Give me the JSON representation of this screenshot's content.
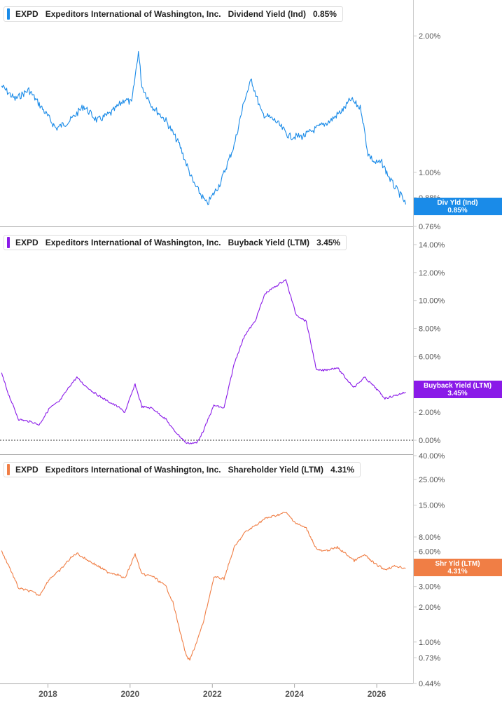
{
  "chart_data": [
    {
      "type": "line",
      "ticker": "EXPD",
      "company": "Expeditors International of Washington, Inc.",
      "metric": "Dividend Yield (Ind)",
      "current_value": "0.85%",
      "tag_label": "Div Yld (Ind)",
      "tag_value": "0.85%",
      "color": "#1a8be8",
      "y_scale": "log",
      "ylim": [
        0.76,
        2.4
      ],
      "y_ticks": [
        {
          "v": 2.0,
          "label": "2.00%"
        },
        {
          "v": 1.0,
          "label": "1.00%"
        },
        {
          "v": 0.88,
          "label": "0.88%"
        },
        {
          "v": 0.76,
          "label": "0.76%"
        }
      ],
      "x": [
        "2016-11",
        "2017-03",
        "2017-07",
        "2017-11",
        "2018-03",
        "2018-07",
        "2018-11",
        "2019-03",
        "2019-07",
        "2019-11",
        "2020-01",
        "2020-03",
        "2020-04",
        "2020-07",
        "2020-11",
        "2021-03",
        "2021-07",
        "2021-11",
        "2022-03",
        "2022-07",
        "2022-10",
        "2022-12",
        "2023-03",
        "2023-07",
        "2023-11",
        "2024-03",
        "2024-07",
        "2024-11",
        "2025-03",
        "2025-05",
        "2025-08",
        "2025-10",
        "2025-12",
        "2026-02",
        "2026-05",
        "2026-08",
        "2026-09"
      ],
      "values": [
        1.55,
        1.45,
        1.52,
        1.38,
        1.25,
        1.3,
        1.4,
        1.3,
        1.35,
        1.45,
        1.42,
        1.85,
        1.55,
        1.4,
        1.3,
        1.15,
        0.95,
        0.85,
        0.95,
        1.15,
        1.45,
        1.6,
        1.35,
        1.3,
        1.2,
        1.2,
        1.25,
        1.3,
        1.38,
        1.45,
        1.38,
        1.1,
        1.05,
        1.05,
        0.95,
        0.88,
        0.85
      ]
    },
    {
      "type": "line",
      "ticker": "EXPD",
      "company": "Expeditors International of Washington, Inc.",
      "metric": "Buyback Yield (LTM)",
      "current_value": "3.45%",
      "tag_label": "Buyback Yield (LTM)",
      "tag_value": "3.45%",
      "color": "#8a1ae8",
      "y_scale": "linear",
      "ylim": [
        -1.0,
        15.2
      ],
      "zero_line": true,
      "y_ticks": [
        {
          "v": 14,
          "label": "14.00%"
        },
        {
          "v": 12,
          "label": "12.00%"
        },
        {
          "v": 10,
          "label": "10.00%"
        },
        {
          "v": 8,
          "label": "8.00%"
        },
        {
          "v": 6,
          "label": "6.00%"
        },
        {
          "v": 4,
          "label": "4.00%"
        },
        {
          "v": 2,
          "label": "2.00%"
        },
        {
          "v": 0,
          "label": "0.00%"
        }
      ],
      "x": [
        "2016-11",
        "2017-01",
        "2017-04",
        "2017-08",
        "2017-10",
        "2018-01",
        "2018-04",
        "2018-07",
        "2018-09",
        "2018-11",
        "2019-02",
        "2019-06",
        "2019-09",
        "2019-11",
        "2020-02",
        "2020-04",
        "2020-07",
        "2020-11",
        "2021-01",
        "2021-05",
        "2021-06",
        "2021-08",
        "2021-10",
        "2022-01",
        "2022-04",
        "2022-07",
        "2022-10",
        "2023-01",
        "2023-04",
        "2023-07",
        "2023-10",
        "2024-01",
        "2024-04",
        "2024-07",
        "2024-09",
        "2025-01",
        "2025-04",
        "2025-06",
        "2025-09",
        "2025-12",
        "2026-03",
        "2026-06",
        "2026-09"
      ],
      "values": [
        4.8,
        3.3,
        1.5,
        1.3,
        1.1,
        2.3,
        2.8,
        3.9,
        4.5,
        4.0,
        3.4,
        2.8,
        2.4,
        2.0,
        4.0,
        2.4,
        2.3,
        1.5,
        0.8,
        -0.2,
        -0.2,
        -0.2,
        0.7,
        2.5,
        2.3,
        5.5,
        7.5,
        8.5,
        10.5,
        11.0,
        11.5,
        9.0,
        8.5,
        5.0,
        5.0,
        5.2,
        4.3,
        3.8,
        4.5,
        3.8,
        3.0,
        3.2,
        3.45
      ]
    },
    {
      "type": "line",
      "ticker": "EXPD",
      "company": "Expeditors International of Washington, Inc.",
      "metric": "Shareholder Yield (LTM)",
      "current_value": "4.31%",
      "tag_label": "Shr Yld (LTM)",
      "tag_value": "4.31%",
      "color": "#f07e45",
      "y_scale": "log",
      "ylim": [
        0.44,
        40
      ],
      "y_ticks": [
        {
          "v": 40,
          "label": "40.00%"
        },
        {
          "v": 25,
          "label": "25.00%"
        },
        {
          "v": 15,
          "label": "15.00%"
        },
        {
          "v": 8,
          "label": "8.00%"
        },
        {
          "v": 6,
          "label": "6.00%"
        },
        {
          "v": 3,
          "label": "3.00%"
        },
        {
          "v": 2,
          "label": "2.00%"
        },
        {
          "v": 1,
          "label": "1.00%"
        },
        {
          "v": 0.73,
          "label": "0.73%"
        },
        {
          "v": 0.44,
          "label": "0.44%"
        }
      ],
      "x": [
        "2016-11",
        "2017-01",
        "2017-04",
        "2017-08",
        "2017-10",
        "2018-01",
        "2018-04",
        "2018-07",
        "2018-09",
        "2018-11",
        "2019-02",
        "2019-06",
        "2019-09",
        "2019-11",
        "2020-02",
        "2020-04",
        "2020-07",
        "2020-11",
        "2021-01",
        "2021-05",
        "2021-06",
        "2021-08",
        "2021-10",
        "2022-01",
        "2022-04",
        "2022-07",
        "2022-10",
        "2023-01",
        "2023-04",
        "2023-07",
        "2023-10",
        "2024-01",
        "2024-04",
        "2024-07",
        "2024-09",
        "2025-01",
        "2025-04",
        "2025-06",
        "2025-09",
        "2025-12",
        "2026-03",
        "2026-06",
        "2026-09"
      ],
      "values": [
        6.0,
        4.6,
        2.9,
        2.7,
        2.5,
        3.5,
        4.1,
        5.2,
        5.8,
        5.3,
        4.7,
        4.0,
        3.8,
        3.5,
        5.7,
        3.8,
        3.7,
        3.0,
        2.2,
        0.75,
        0.7,
        1.0,
        1.5,
        3.6,
        3.5,
        6.5,
        8.7,
        10.0,
        11.5,
        12.2,
        13.0,
        10.5,
        9.5,
        6.3,
        6.0,
        6.5,
        5.6,
        5.0,
        5.6,
        4.7,
        4.2,
        4.5,
        4.31
      ]
    }
  ],
  "x_axis": {
    "range": [
      "2016-11-01",
      "2026-11-20"
    ],
    "ticks": [
      "2018",
      "2020",
      "2022",
      "2024",
      "2026"
    ]
  }
}
